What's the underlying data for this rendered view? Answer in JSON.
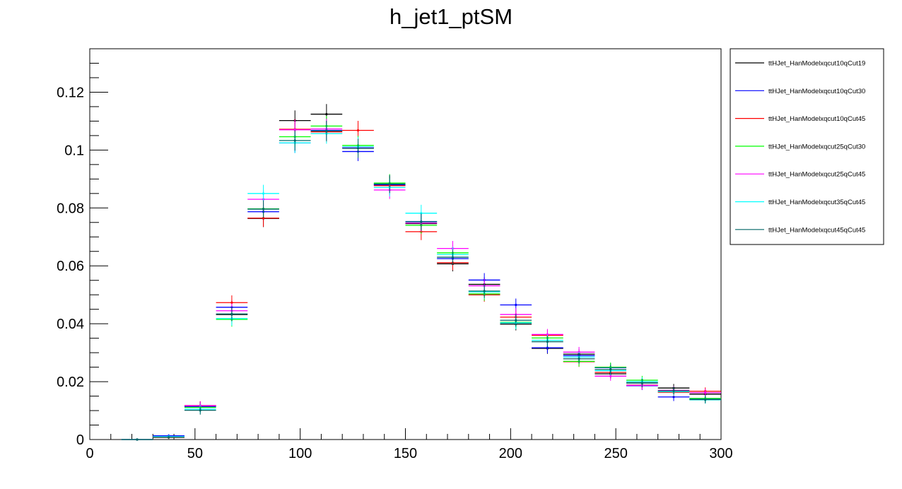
{
  "chart_data": {
    "type": "scatter",
    "title": "h_jet1_ptSM",
    "xlabel": "",
    "ylabel": "",
    "xlim": [
      0,
      300
    ],
    "ylim": [
      0,
      0.135
    ],
    "grid": false,
    "legend_position": "right",
    "bin_width": 15,
    "xticks": [
      "0",
      "50",
      "100",
      "150",
      "200",
      "250",
      "300"
    ],
    "yticks": [
      "0",
      "0.02",
      "0.04",
      "0.06",
      "0.08",
      "0.1",
      "0.12"
    ],
    "x": [
      22.5,
      37.5,
      52.5,
      67.5,
      82.5,
      97.5,
      112.5,
      127.5,
      142.5,
      157.5,
      172.5,
      187.5,
      202.5,
      217.5,
      232.5,
      247.5,
      262.5,
      277.5,
      292.5
    ],
    "series": [
      {
        "name": "ttHJet_HanModelxqcut10qCut19",
        "color": "#000000",
        "values": [
          0,
          0.0008,
          0.0117,
          0.0432,
          0.0764,
          0.1102,
          0.1124,
          0.1008,
          0.0882,
          0.0746,
          0.0607,
          0.0536,
          0.0399,
          0.0315,
          0.0295,
          0.0227,
          0.0196,
          0.0178,
          0.0157
        ],
        "errors": [
          0.0003,
          0.0005,
          0.0015,
          0.0025,
          0.003,
          0.0035,
          0.0035,
          0.0033,
          0.0031,
          0.0029,
          0.0026,
          0.0024,
          0.0022,
          0.0019,
          0.0018,
          0.0016,
          0.0015,
          0.0014,
          0.0013
        ]
      },
      {
        "name": "ttHJet_HanModelxqcut10qCut30",
        "color": "#0000ff",
        "values": [
          0,
          0.0013,
          0.0113,
          0.0457,
          0.0787,
          0.1025,
          0.1068,
          0.0995,
          0.0879,
          0.0753,
          0.0625,
          0.0551,
          0.0465,
          0.0317,
          0.029,
          0.0248,
          0.0186,
          0.0147,
          0.014
        ],
        "errors": [
          0.0003,
          0.0005,
          0.0015,
          0.0025,
          0.003,
          0.0035,
          0.0035,
          0.0033,
          0.0031,
          0.0029,
          0.0026,
          0.0024,
          0.0022,
          0.0019,
          0.0018,
          0.0016,
          0.0015,
          0.0014,
          0.0013
        ]
      },
      {
        "name": "ttHJet_HanModelxqcut10qCut45",
        "color": "#ff0000",
        "values": [
          0,
          0.0007,
          0.0117,
          0.0473,
          0.0765,
          0.1072,
          0.1063,
          0.1068,
          0.0877,
          0.0718,
          0.0611,
          0.05,
          0.0423,
          0.036,
          0.0269,
          0.0232,
          0.0188,
          0.0163,
          0.0167
        ],
        "errors": [
          0.0003,
          0.0005,
          0.0015,
          0.0025,
          0.003,
          0.0035,
          0.0035,
          0.0033,
          0.0031,
          0.0029,
          0.0026,
          0.0024,
          0.0022,
          0.0019,
          0.0018,
          0.0016,
          0.0015,
          0.0014,
          0.0013
        ]
      },
      {
        "name": "ttHJet_HanModelxqcut25qCut30",
        "color": "#00ff00",
        "values": [
          0,
          0.0008,
          0.0111,
          0.0415,
          0.0797,
          0.1046,
          0.1083,
          0.1016,
          0.0886,
          0.074,
          0.0645,
          0.0503,
          0.0405,
          0.0351,
          0.027,
          0.025,
          0.0205,
          0.0165,
          0.0142
        ],
        "errors": [
          0.0003,
          0.0005,
          0.0015,
          0.0025,
          0.003,
          0.0035,
          0.0035,
          0.0033,
          0.0031,
          0.0029,
          0.0026,
          0.0024,
          0.0022,
          0.0019,
          0.0018,
          0.0016,
          0.0015,
          0.0014,
          0.0013
        ]
      },
      {
        "name": "ttHJet_HanModelxqcut25qCut45",
        "color": "#ff00ff",
        "values": [
          0,
          0.0009,
          0.0117,
          0.0445,
          0.083,
          0.107,
          0.1073,
          0.1008,
          0.0862,
          0.0748,
          0.066,
          0.0531,
          0.0432,
          0.0363,
          0.0302,
          0.0219,
          0.0187,
          0.017,
          0.0162
        ],
        "errors": [
          0.0003,
          0.0005,
          0.0015,
          0.0025,
          0.003,
          0.0035,
          0.0035,
          0.0033,
          0.0031,
          0.0029,
          0.0026,
          0.0024,
          0.0022,
          0.0019,
          0.0018,
          0.0016,
          0.0015,
          0.0014,
          0.0013
        ]
      },
      {
        "name": "ttHJet_HanModelxqcut35qCut45",
        "color": "#00ffff",
        "values": [
          0,
          0.001,
          0.0105,
          0.0418,
          0.085,
          0.1025,
          0.1057,
          0.1011,
          0.0871,
          0.0782,
          0.0639,
          0.051,
          0.0403,
          0.0343,
          0.0285,
          0.0238,
          0.02,
          0.0165,
          0.0137
        ],
        "errors": [
          0.0003,
          0.0005,
          0.0015,
          0.0025,
          0.003,
          0.0035,
          0.0035,
          0.0033,
          0.0031,
          0.0029,
          0.0026,
          0.0024,
          0.0022,
          0.0019,
          0.0018,
          0.0016,
          0.0015,
          0.0014,
          0.0013
        ]
      },
      {
        "name": "ttHJet_HanModelxqcut45qCut45",
        "color": "#006666",
        "values": [
          0,
          0.0008,
          0.0101,
          0.0434,
          0.0796,
          0.1033,
          0.1066,
          0.1006,
          0.0883,
          0.0752,
          0.063,
          0.0513,
          0.0412,
          0.0338,
          0.0279,
          0.0242,
          0.0195,
          0.0168,
          0.0138
        ],
        "errors": [
          0.0003,
          0.0005,
          0.0015,
          0.0025,
          0.003,
          0.0035,
          0.0035,
          0.0033,
          0.0031,
          0.0029,
          0.0026,
          0.0024,
          0.0022,
          0.0019,
          0.0018,
          0.0016,
          0.0015,
          0.0014,
          0.0013
        ]
      }
    ]
  }
}
